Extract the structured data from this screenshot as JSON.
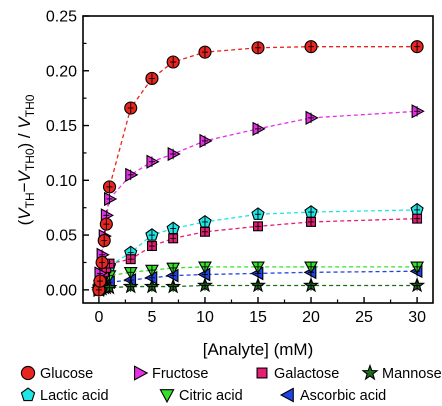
{
  "chart_data": {
    "type": "scatter",
    "title": "",
    "xlabel": "[Analyte] (mM)",
    "ylabel": {
      "open": "(",
      "v1": "V",
      "s1": "TH",
      "minus": "−",
      "v2": "V",
      "s2": "TH0",
      "mid": ") / ",
      "v3": "V",
      "s3": "TH0"
    },
    "xlim": [
      -1.5,
      31.5
    ],
    "ylim": [
      -0.012,
      0.25
    ],
    "xticks": [
      0,
      5,
      10,
      15,
      20,
      25,
      30
    ],
    "xtick_labels": [
      "0",
      "5",
      "10",
      "15",
      "20",
      "25",
      "30"
    ],
    "yticks": [
      0.0,
      0.05,
      0.1,
      0.15,
      0.2,
      0.25
    ],
    "ytick_labels": [
      "0.00",
      "0.05",
      "0.10",
      "0.15",
      "0.20",
      "0.25"
    ],
    "grid": false,
    "legend_position": "bottom",
    "error_bars": true,
    "fit_lines": "dashed",
    "series": [
      {
        "name": "Glucose",
        "marker": "circle",
        "color": "#e8251f",
        "x": [
          0,
          0.1,
          0.3,
          0.5,
          0.7,
          1,
          3,
          5,
          7,
          10,
          15,
          20,
          30
        ],
        "y": [
          0.0,
          0.008,
          0.025,
          0.045,
          0.06,
          0.094,
          0.166,
          0.193,
          0.208,
          0.217,
          0.221,
          0.222,
          0.222
        ]
      },
      {
        "name": "Fructose",
        "marker": "triangle-right",
        "color": "#e62fe6",
        "x": [
          0,
          0.1,
          0.3,
          0.5,
          0.7,
          1,
          3,
          5,
          7,
          10,
          15,
          20,
          30
        ],
        "y": [
          0.0,
          0.015,
          0.032,
          0.049,
          0.068,
          0.083,
          0.105,
          0.117,
          0.124,
          0.136,
          0.147,
          0.157,
          0.163
        ]
      },
      {
        "name": "Galactose",
        "marker": "square",
        "color": "#e61f75",
        "x": [
          0,
          0.1,
          0.3,
          0.5,
          0.7,
          1,
          3,
          5,
          7,
          10,
          15,
          20,
          30
        ],
        "y": [
          0.0,
          0.005,
          0.011,
          0.016,
          0.02,
          0.024,
          0.028,
          0.04,
          0.047,
          0.053,
          0.058,
          0.062,
          0.065
        ]
      },
      {
        "name": "Mannose",
        "marker": "star",
        "color": "#1d6b1d",
        "x": [
          0,
          0.1,
          0.3,
          0.5,
          0.7,
          1,
          3,
          5,
          7,
          10,
          15,
          20,
          30
        ],
        "y": [
          0.0,
          0.001,
          0.001,
          0.002,
          0.002,
          0.002,
          0.003,
          0.003,
          0.003,
          0.004,
          0.004,
          0.004,
          0.004
        ]
      },
      {
        "name": "Lactic acid",
        "marker": "pentagon",
        "color": "#1ee6e6",
        "x": [
          0,
          0.1,
          0.3,
          0.5,
          0.7,
          1,
          3,
          5,
          7,
          10,
          15,
          20,
          30
        ],
        "y": [
          0.0,
          0.007,
          0.013,
          0.017,
          0.02,
          0.022,
          0.034,
          0.05,
          0.056,
          0.062,
          0.069,
          0.071,
          0.073
        ]
      },
      {
        "name": "Citric acid",
        "marker": "triangle-down",
        "color": "#36e02a",
        "x": [
          0,
          0.1,
          0.3,
          0.5,
          0.7,
          1,
          3,
          5,
          7,
          10,
          15,
          20,
          30
        ],
        "y": [
          0.0,
          0.004,
          0.008,
          0.01,
          0.012,
          0.013,
          0.016,
          0.018,
          0.02,
          0.021,
          0.021,
          0.021,
          0.021
        ]
      },
      {
        "name": "Ascorbic acid",
        "marker": "triangle-left",
        "color": "#1f44e6",
        "x": [
          0,
          0.1,
          0.3,
          0.5,
          0.7,
          1,
          3,
          5,
          7,
          10,
          15,
          20,
          30
        ],
        "y": [
          0.0,
          0.002,
          0.004,
          0.005,
          0.006,
          0.007,
          0.009,
          0.011,
          0.013,
          0.014,
          0.015,
          0.016,
          0.017
        ]
      }
    ]
  }
}
